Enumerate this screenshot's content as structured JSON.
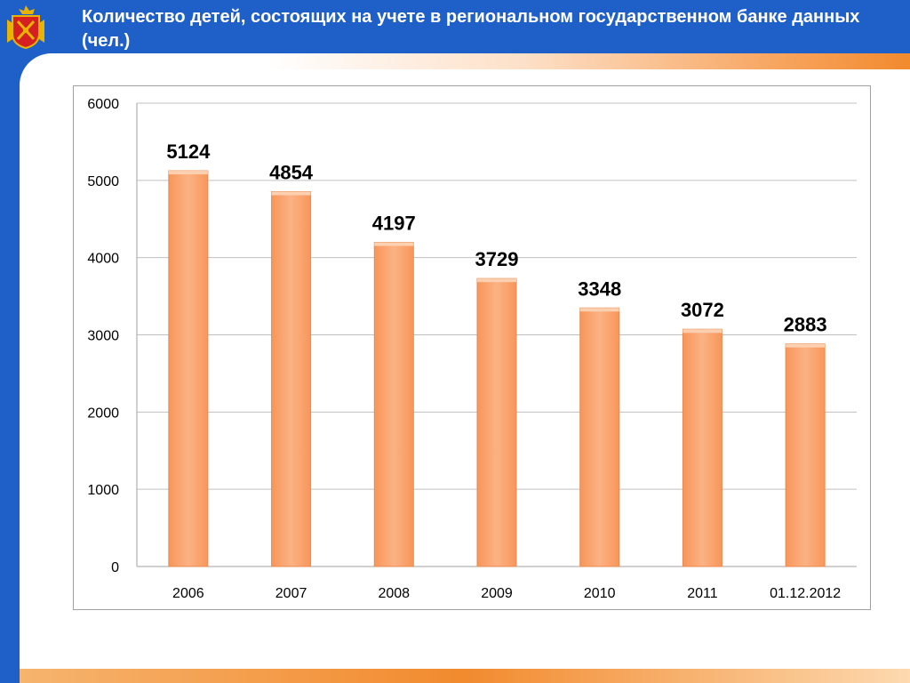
{
  "title": "Количество детей, состоящих на учете в региональном государственном банке данных (чел.)",
  "colors": {
    "background": "#1f5fc8",
    "bar_fill": "#f9a36e",
    "bar_stroke": "#e88a50",
    "accent_orange": "#f28a2e"
  },
  "icons": {
    "emblem": "coat-of-arms-icon"
  },
  "chart_data": {
    "type": "bar",
    "title": "",
    "xlabel": "",
    "ylabel": "",
    "categories": [
      "2006",
      "2007",
      "2008",
      "2009",
      "2010",
      "2011",
      "01.12.2012"
    ],
    "values": [
      5124,
      4854,
      4197,
      3729,
      3348,
      3072,
      2883
    ],
    "data_labels": [
      "5124",
      "4854",
      "4197",
      "3729",
      "3348",
      "3072",
      "2883"
    ],
    "ylim": [
      0,
      6000
    ],
    "yticks": [
      0,
      1000,
      2000,
      3000,
      4000,
      5000,
      6000
    ],
    "ytick_labels": [
      "0",
      "1000",
      "2000",
      "3000",
      "4000",
      "5000",
      "6000"
    ],
    "grid": true,
    "legend": "none"
  }
}
